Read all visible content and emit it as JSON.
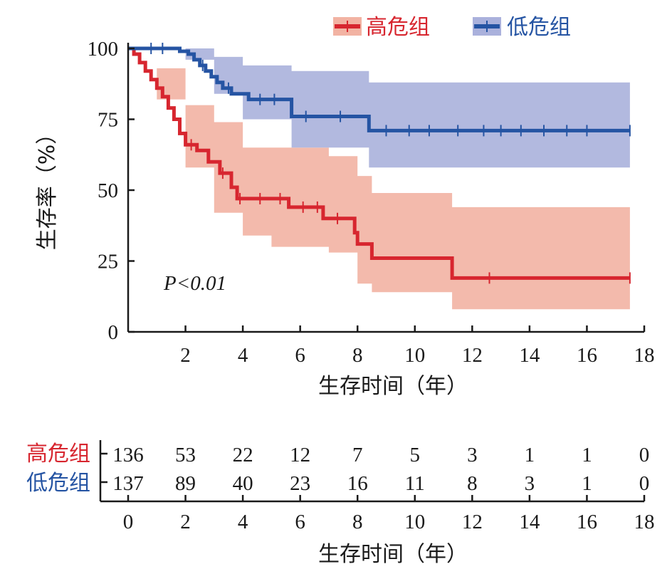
{
  "chart_data": {
    "type": "line",
    "subtype": "kaplan-meier",
    "ylabel": "生存率（%）",
    "xlabel": "生存时间（年）",
    "xlim": [
      0,
      18
    ],
    "ylim": [
      0,
      100
    ],
    "yticks": [
      0,
      25,
      50,
      75,
      100
    ],
    "xticks": [
      2,
      4,
      6,
      8,
      10,
      12,
      14,
      16,
      18
    ],
    "annotation": "P<0.01",
    "legend_position": "top-right",
    "series": [
      {
        "name": "高危组",
        "color": "#d7262f",
        "band_color": "#f2b3a3",
        "steps": [
          [
            0,
            100
          ],
          [
            0.2,
            98
          ],
          [
            0.4,
            95
          ],
          [
            0.6,
            92
          ],
          [
            0.8,
            89
          ],
          [
            1.0,
            86
          ],
          [
            1.2,
            83
          ],
          [
            1.4,
            79
          ],
          [
            1.6,
            75
          ],
          [
            1.8,
            70
          ],
          [
            2.0,
            66
          ],
          [
            2.4,
            64
          ],
          [
            2.8,
            60
          ],
          [
            3.2,
            56
          ],
          [
            3.6,
            51
          ],
          [
            3.8,
            47
          ],
          [
            4.5,
            47
          ],
          [
            5.5,
            47
          ],
          [
            5.6,
            44
          ],
          [
            6.5,
            44
          ],
          [
            6.8,
            40
          ],
          [
            7.8,
            40
          ],
          [
            7.9,
            35
          ],
          [
            8.0,
            31
          ],
          [
            8.5,
            26
          ],
          [
            9.5,
            26
          ],
          [
            11.2,
            26
          ],
          [
            11.3,
            19
          ],
          [
            17.5,
            19
          ]
        ],
        "ci_upper": [
          [
            0,
            100
          ],
          [
            1,
            93
          ],
          [
            2,
            80
          ],
          [
            3,
            74
          ],
          [
            4,
            65
          ],
          [
            5,
            65
          ],
          [
            6,
            65
          ],
          [
            7,
            62
          ],
          [
            8,
            55
          ],
          [
            8.5,
            49
          ],
          [
            11.3,
            49
          ],
          [
            11.3,
            44
          ],
          [
            17.5,
            44
          ]
        ],
        "ci_lower": [
          [
            0,
            100
          ],
          [
            1,
            82
          ],
          [
            2,
            58
          ],
          [
            3,
            42
          ],
          [
            4,
            34
          ],
          [
            5,
            30
          ],
          [
            6,
            30
          ],
          [
            7,
            28
          ],
          [
            8,
            17
          ],
          [
            8.5,
            14
          ],
          [
            11.3,
            14
          ],
          [
            11.3,
            8
          ],
          [
            17.5,
            8
          ]
        ],
        "censor_times": [
          2.2,
          3.3,
          3.9,
          4.6,
          5.3,
          6.1,
          6.6,
          7.3,
          12.6,
          17.5
        ]
      },
      {
        "name": "低危组",
        "color": "#2554a3",
        "band_color": "#aab1dc",
        "steps": [
          [
            0,
            100
          ],
          [
            1.5,
            100
          ],
          [
            1.8,
            99
          ],
          [
            2.1,
            98
          ],
          [
            2.3,
            96
          ],
          [
            2.5,
            94
          ],
          [
            2.7,
            92
          ],
          [
            2.9,
            90
          ],
          [
            3.1,
            88
          ],
          [
            3.3,
            86
          ],
          [
            3.6,
            84
          ],
          [
            4.0,
            84
          ],
          [
            4.2,
            82
          ],
          [
            5.6,
            82
          ],
          [
            5.7,
            76
          ],
          [
            8.3,
            76
          ],
          [
            8.4,
            71
          ],
          [
            17.5,
            71
          ]
        ],
        "ci_upper": [
          [
            0,
            100
          ],
          [
            2,
            100
          ],
          [
            3,
            97
          ],
          [
            4,
            94
          ],
          [
            5.7,
            92
          ],
          [
            8.4,
            92
          ],
          [
            8.4,
            88
          ],
          [
            17.5,
            88
          ]
        ],
        "ci_lower": [
          [
            0,
            100
          ],
          [
            2,
            96
          ],
          [
            3,
            84
          ],
          [
            4,
            75
          ],
          [
            5.7,
            65
          ],
          [
            8.4,
            65
          ],
          [
            8.4,
            58
          ],
          [
            17.5,
            58
          ]
        ],
        "censor_times": [
          0.8,
          1.2,
          2.6,
          3.5,
          4.6,
          5.1,
          6.2,
          7.4,
          9.0,
          9.8,
          10.5,
          11.5,
          12.4,
          13.0,
          13.7,
          14.5,
          15.3,
          16.0,
          17.5
        ]
      }
    ],
    "risk_table": {
      "title": "",
      "times": [
        0,
        2,
        4,
        6,
        8,
        10,
        12,
        14,
        16,
        18
      ],
      "xlabel": "生存时间（年）",
      "rows": [
        {
          "group": "高危组",
          "color": "#d7262f",
          "counts": [
            136,
            53,
            22,
            12,
            7,
            5,
            3,
            1,
            1,
            0
          ]
        },
        {
          "group": "低危组",
          "color": "#2554a3",
          "counts": [
            137,
            89,
            40,
            23,
            16,
            11,
            8,
            3,
            1,
            0
          ]
        }
      ]
    }
  }
}
